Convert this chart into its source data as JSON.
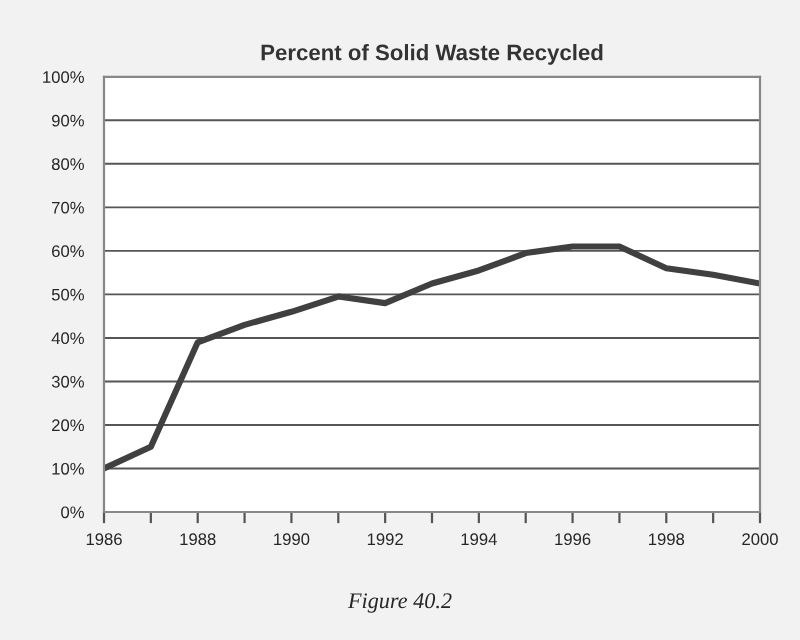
{
  "chart_data": {
    "type": "line",
    "title": "Percent of Solid Waste Recycled",
    "annotations": [
      "Figure 40.2"
    ],
    "x": [
      1986,
      1987,
      1988,
      1989,
      1990,
      1991,
      1992,
      1993,
      1994,
      1995,
      1996,
      1997,
      1998,
      1999,
      2000
    ],
    "series": [
      {
        "color": "#404040",
        "values": [
          10,
          15,
          39,
          43,
          46,
          49.5,
          48,
          52.5,
          55.5,
          59.5,
          61,
          61,
          56,
          54.5,
          52.5
        ]
      }
    ],
    "xlim": [
      1986,
      2000
    ],
    "xticks": [
      1986,
      {
        "value": 1987,
        "label": null
      },
      1988,
      {
        "value": 1989,
        "label": null
      },
      1990,
      {
        "value": 1991,
        "label": null
      },
      1992,
      {
        "value": 1993,
        "label": null
      },
      1994,
      {
        "value": 1995,
        "label": null
      },
      1996,
      {
        "value": 1997,
        "label": null
      },
      1998,
      {
        "value": 1999,
        "label": null
      },
      2000
    ],
    "ylim": [
      0,
      100
    ],
    "yticks": [
      {
        "value": 0,
        "label": "0%"
      },
      {
        "value": 10,
        "label": "10%"
      },
      {
        "value": 20,
        "label": "20%"
      },
      {
        "value": 30,
        "label": "30%"
      },
      {
        "value": 40,
        "label": "40%"
      },
      {
        "value": 50,
        "label": "50%"
      },
      {
        "value": 60,
        "label": "60%"
      },
      {
        "value": 70,
        "label": "70%"
      },
      {
        "value": 80,
        "label": "80%"
      },
      {
        "value": 90,
        "label": "90%"
      },
      {
        "value": 100,
        "label": "100%"
      }
    ],
    "grid": "y",
    "marker": "none",
    "line_style": "solid",
    "legend": false
  }
}
